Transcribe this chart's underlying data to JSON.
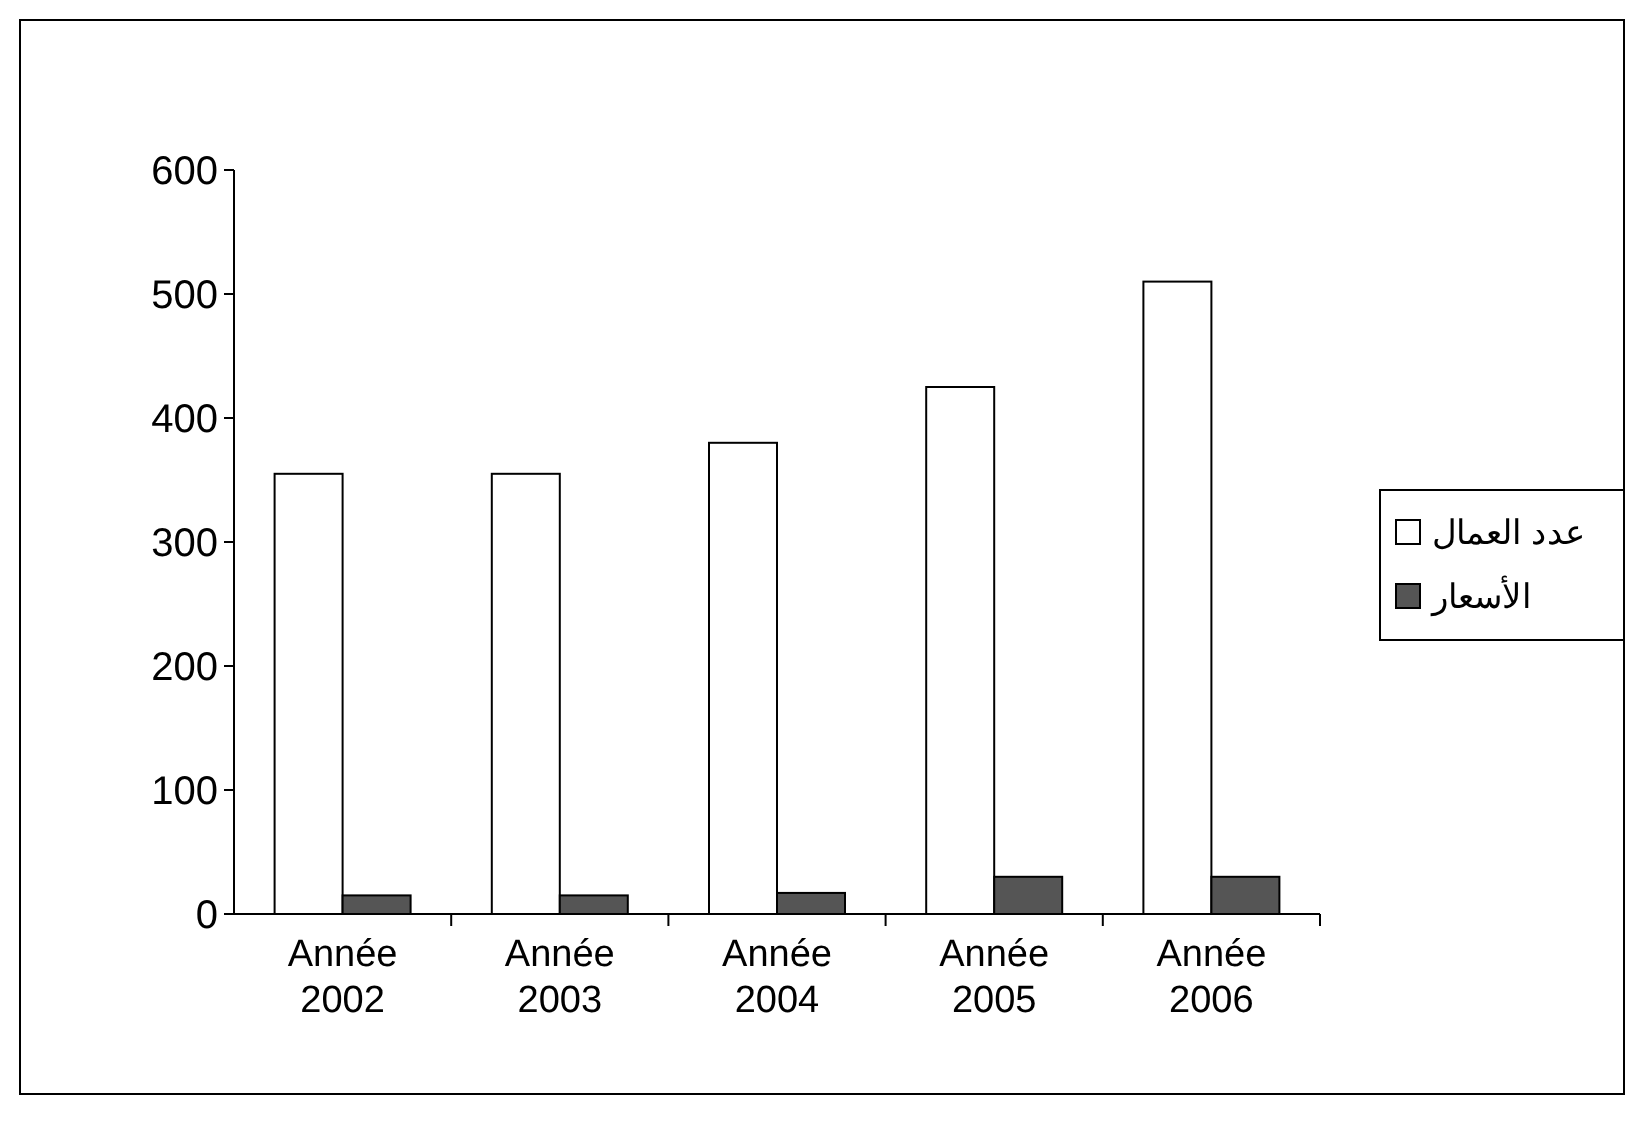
{
  "chart_data": {
    "type": "bar",
    "categories": [
      "Année 2002",
      "Année 2003",
      "Année 2004",
      "Année 2005",
      "Année 2006"
    ],
    "series": [
      {
        "name": "عدد العمال",
        "color": "#ffffff",
        "values": [
          355,
          355,
          380,
          425,
          510
        ]
      },
      {
        "name": "الأسعار",
        "color": "#555555",
        "values": [
          15,
          15,
          17,
          30,
          30
        ]
      }
    ],
    "ylim": [
      0,
      600
    ],
    "yticks": [
      0,
      100,
      200,
      300,
      400,
      500,
      600
    ],
    "grid": false,
    "legend": "right"
  }
}
